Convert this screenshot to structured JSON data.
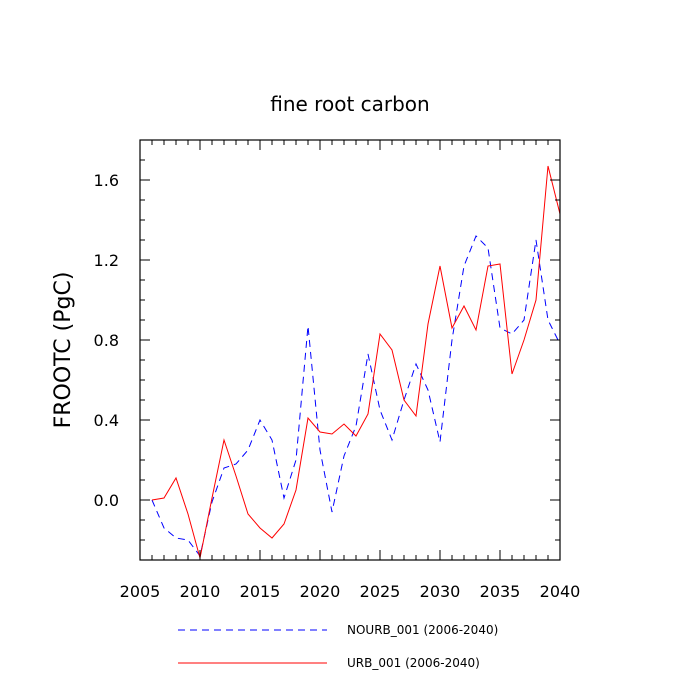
{
  "chart_data": {
    "type": "line",
    "title": "fine root carbon",
    "xlabel": "",
    "ylabel": "FROOTC  (PgC)",
    "xlim": [
      2005,
      2040
    ],
    "ylim": [
      -0.3,
      1.8
    ],
    "xticks": [
      2005,
      2010,
      2015,
      2020,
      2025,
      2030,
      2035,
      2040
    ],
    "xtick_labels": [
      "2005",
      "2010",
      "2015",
      "2020",
      "2025",
      "2030",
      "2035",
      "2040"
    ],
    "yticks": [
      0.0,
      0.4,
      0.8,
      1.2,
      1.6
    ],
    "ytick_labels": [
      "0.0",
      "0.4",
      "0.8",
      "1.2",
      "1.6"
    ],
    "grid": false,
    "legend_position": "bottom",
    "x": [
      2006,
      2007,
      2008,
      2009,
      2010,
      2011,
      2012,
      2013,
      2014,
      2015,
      2016,
      2017,
      2018,
      2019,
      2020,
      2021,
      2022,
      2023,
      2024,
      2025,
      2026,
      2027,
      2028,
      2029,
      2030,
      2031,
      2032,
      2033,
      2034,
      2035,
      2036,
      2037,
      2038,
      2039,
      2040
    ],
    "series": [
      {
        "name": "NOURB_001 (2006-2040)",
        "color": "#0000ff",
        "dash": "dashed",
        "values": [
          0.0,
          -0.14,
          -0.19,
          -0.2,
          -0.28,
          -0.01,
          0.16,
          0.18,
          0.25,
          0.4,
          0.3,
          0.01,
          0.2,
          0.87,
          0.25,
          -0.06,
          0.22,
          0.37,
          0.73,
          0.45,
          0.3,
          0.5,
          0.68,
          0.55,
          0.29,
          0.8,
          1.17,
          1.32,
          1.26,
          0.86,
          0.83,
          0.9,
          1.3,
          0.9,
          0.78
        ]
      },
      {
        "name": "URB_001 (2006-2040)",
        "color": "#ff0000",
        "dash": "solid",
        "values": [
          0.0,
          0.01,
          0.11,
          -0.07,
          -0.29,
          0.01,
          0.3,
          0.12,
          -0.07,
          -0.14,
          -0.19,
          -0.12,
          0.05,
          0.41,
          0.34,
          0.33,
          0.38,
          0.32,
          0.43,
          0.83,
          0.75,
          0.5,
          0.42,
          0.88,
          1.17,
          0.86,
          0.97,
          0.85,
          1.17,
          1.18,
          0.63,
          0.8,
          1.0,
          1.67,
          1.43
        ]
      }
    ]
  }
}
